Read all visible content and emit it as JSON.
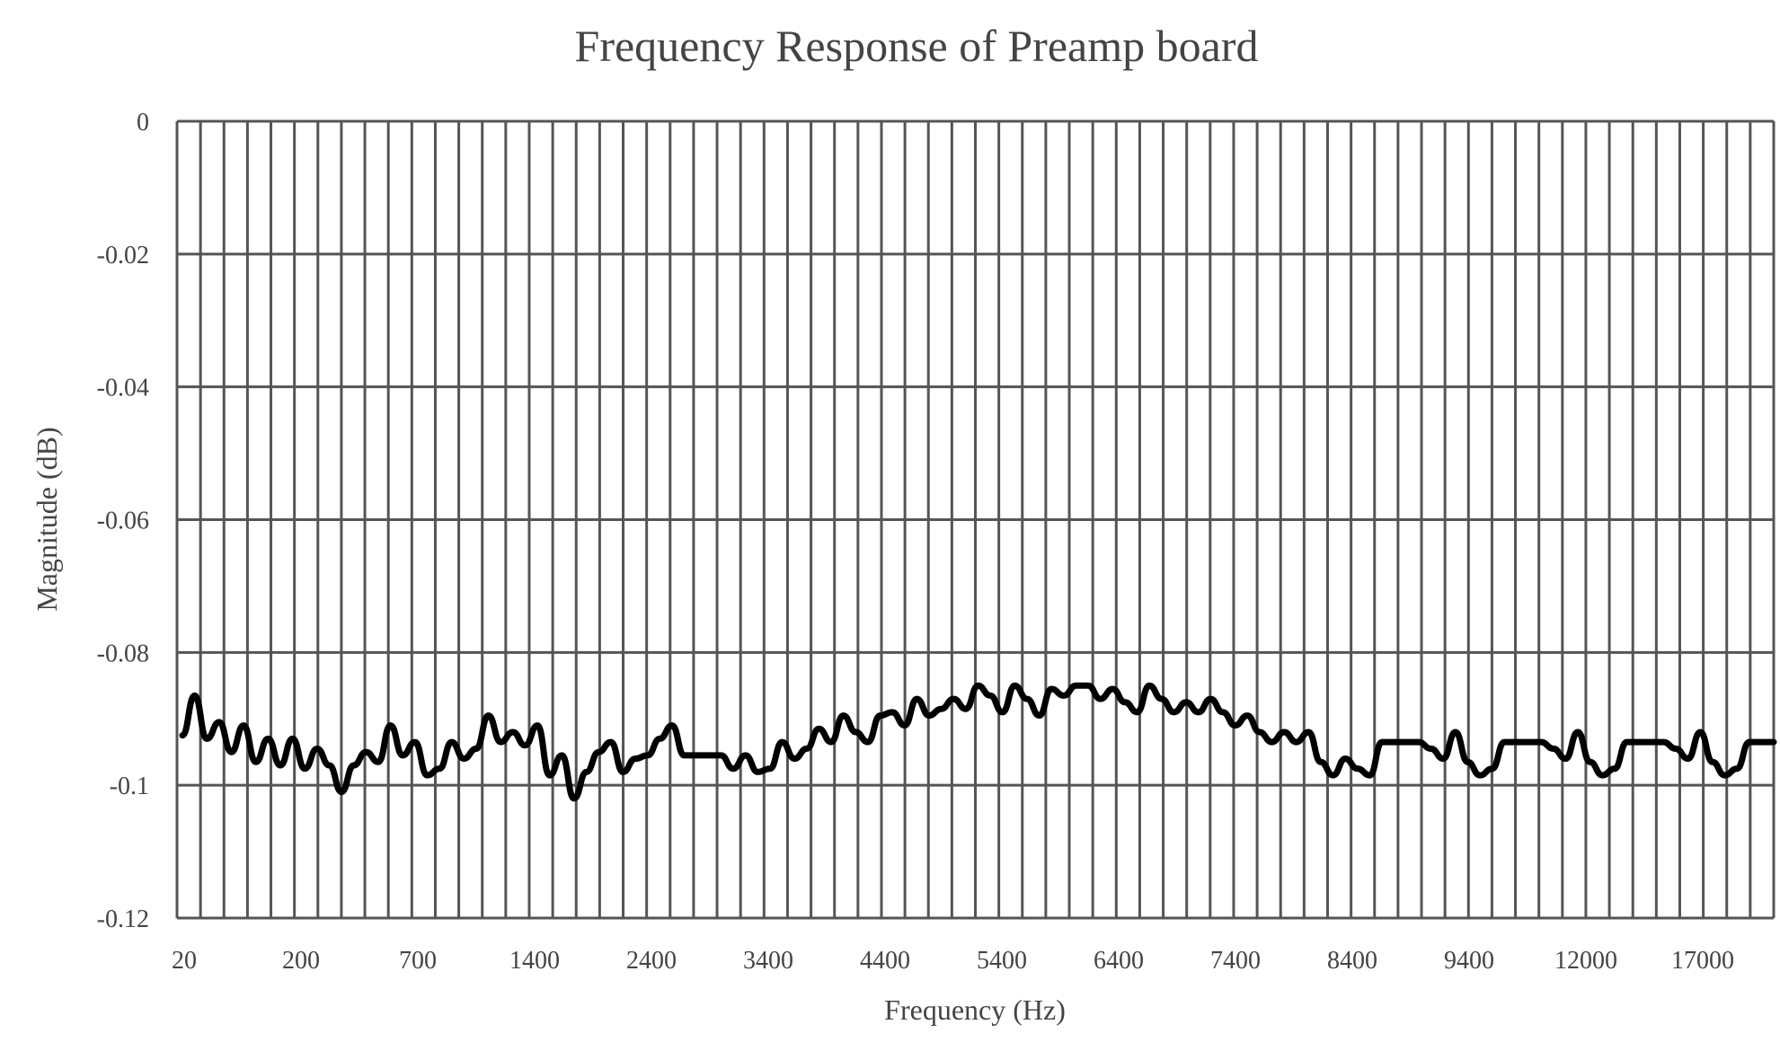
{
  "chart_data": {
    "type": "line",
    "title": "Frequency Response of Preamp board",
    "xlabel": "Frequency (Hz)",
    "ylabel": "Magnitude (dB)",
    "ylim": [
      -0.12,
      0
    ],
    "yticks": [
      0,
      -0.02,
      -0.04,
      -0.06,
      -0.08,
      -0.1,
      -0.12
    ],
    "ytick_labels": [
      "0",
      "-0.02",
      "-0.04",
      "-0.06",
      "-0.08",
      "-0.1",
      "-0.12"
    ],
    "x_tick_labels": [
      "20",
      "200",
      "700",
      "1400",
      "2400",
      "3400",
      "4400",
      "5400",
      "6400",
      "7400",
      "8400",
      "9400",
      "12000",
      "17000"
    ],
    "grid": true,
    "legend": "none",
    "series": [
      {
        "color": "#000000",
        "values": [
          -0.0925,
          -0.0865,
          -0.093,
          -0.0905,
          -0.095,
          -0.091,
          -0.0965,
          -0.093,
          -0.097,
          -0.093,
          -0.0975,
          -0.0945,
          -0.097,
          -0.101,
          -0.097,
          -0.095,
          -0.0965,
          -0.091,
          -0.0955,
          -0.0935,
          -0.0985,
          -0.0975,
          -0.0935,
          -0.096,
          -0.0945,
          -0.0895,
          -0.0935,
          -0.092,
          -0.094,
          -0.091,
          -0.0985,
          -0.0955,
          -0.102,
          -0.098,
          -0.095,
          -0.0935,
          -0.098,
          -0.096,
          -0.0955,
          -0.093,
          -0.091,
          -0.0955,
          -0.0955,
          -0.0955,
          -0.0955,
          -0.0975,
          -0.0955,
          -0.098,
          -0.0975,
          -0.0935,
          -0.096,
          -0.0945,
          -0.0915,
          -0.0935,
          -0.0895,
          -0.092,
          -0.0935,
          -0.0895,
          -0.089,
          -0.091,
          -0.087,
          -0.0895,
          -0.0885,
          -0.087,
          -0.0885,
          -0.085,
          -0.0865,
          -0.089,
          -0.085,
          -0.087,
          -0.0895,
          -0.0855,
          -0.0865,
          -0.085,
          -0.085,
          -0.087,
          -0.0855,
          -0.0875,
          -0.089,
          -0.085,
          -0.087,
          -0.089,
          -0.0875,
          -0.089,
          -0.087,
          -0.089,
          -0.091,
          -0.0895,
          -0.092,
          -0.0935,
          -0.092,
          -0.0935,
          -0.092,
          -0.0965,
          -0.0985,
          -0.096,
          -0.0975,
          -0.0985,
          -0.0935,
          -0.0935,
          -0.0935,
          -0.0935,
          -0.0945,
          -0.096,
          -0.092,
          -0.0965,
          -0.0985,
          -0.0975,
          -0.0935,
          -0.0935,
          -0.0935,
          -0.0935,
          -0.0945,
          -0.096,
          -0.092,
          -0.0965,
          -0.0985,
          -0.0975,
          -0.0935,
          -0.0935,
          -0.0935,
          -0.0935,
          -0.0945,
          -0.096,
          -0.092,
          -0.0965,
          -0.0985,
          -0.0975,
          -0.0935,
          -0.0935,
          -0.0935
        ]
      }
    ]
  }
}
